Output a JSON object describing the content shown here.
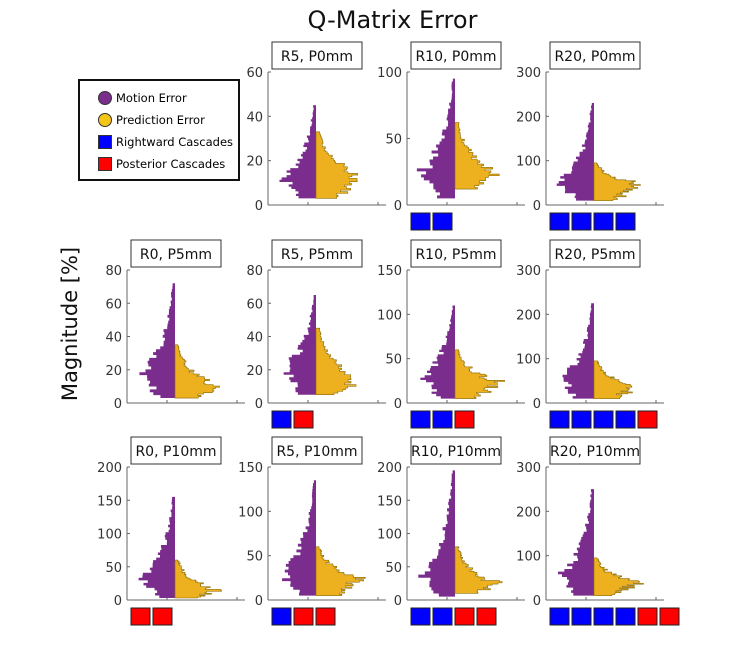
{
  "chart_data": {
    "type": "histogram-violin",
    "title": "Q-Matrix Error",
    "ylabel": "Magnitude [%]",
    "legend": {
      "position": "top-left",
      "entries": [
        {
          "label": "Motion Error",
          "color": "#7b2d8e",
          "shape": "circle"
        },
        {
          "label": "Prediction Error",
          "color": "#edb120",
          "shape": "circle"
        },
        {
          "label": "Rightward Cascades",
          "color": "#0000ff",
          "shape": "square"
        },
        {
          "label": "Posterior Cascades",
          "color": "#ff0000",
          "shape": "square"
        }
      ]
    },
    "panels": [
      {
        "title": "R5, P0mm",
        "row": 0,
        "col": 1,
        "ylim": [
          0,
          60
        ],
        "yticks": [
          "0",
          "20",
          "40",
          "60"
        ],
        "motion": {
          "min": 3,
          "max": 45,
          "peak": 12
        },
        "prediction": {
          "min": 3,
          "max": 33,
          "peak": 14
        },
        "cascades": []
      },
      {
        "title": "R10, P0mm",
        "row": 0,
        "col": 2,
        "ylim": [
          0,
          100
        ],
        "yticks": [
          "0",
          "50",
          "100"
        ],
        "motion": {
          "min": 5,
          "max": 95,
          "peak": 25
        },
        "prediction": {
          "min": 12,
          "max": 62,
          "peak": 25
        },
        "cascades": [
          "R",
          "R"
        ]
      },
      {
        "title": "R20, P0mm",
        "row": 0,
        "col": 3,
        "ylim": [
          0,
          300
        ],
        "yticks": [
          "0",
          "100",
          "200",
          "300"
        ],
        "motion": {
          "min": 10,
          "max": 230,
          "peak": 50
        },
        "prediction": {
          "min": 10,
          "max": 95,
          "peak": 50
        },
        "cascades": [
          "R",
          "R",
          "R",
          "R"
        ]
      },
      {
        "title": "R0, P5mm",
        "row": 1,
        "col": 0,
        "ylim": [
          0,
          80
        ],
        "yticks": [
          "0",
          "20",
          "40",
          "60",
          "80"
        ],
        "motion": {
          "min": 3,
          "max": 72,
          "peak": 17
        },
        "prediction": {
          "min": 3,
          "max": 35,
          "peak": 10
        },
        "cascades": []
      },
      {
        "title": "R5, P5mm",
        "row": 1,
        "col": 1,
        "ylim": [
          0,
          80
        ],
        "yticks": [
          "0",
          "20",
          "40",
          "60",
          "80"
        ],
        "motion": {
          "min": 5,
          "max": 65,
          "peak": 20
        },
        "prediction": {
          "min": 5,
          "max": 45,
          "peak": 15
        },
        "cascades": [
          "R",
          "P"
        ]
      },
      {
        "title": "R10, P5mm",
        "row": 1,
        "col": 2,
        "ylim": [
          0,
          150
        ],
        "yticks": [
          "0",
          "50",
          "100",
          "150"
        ],
        "motion": {
          "min": 5,
          "max": 110,
          "peak": 30
        },
        "prediction": {
          "min": 5,
          "max": 60,
          "peak": 25
        },
        "cascades": [
          "R",
          "R",
          "P"
        ]
      },
      {
        "title": "R20, P5mm",
        "row": 1,
        "col": 3,
        "ylim": [
          0,
          300
        ],
        "yticks": [
          "0",
          "100",
          "200",
          "300"
        ],
        "motion": {
          "min": 10,
          "max": 225,
          "peak": 50
        },
        "prediction": {
          "min": 10,
          "max": 95,
          "peak": 40
        },
        "cascades": [
          "R",
          "R",
          "R",
          "R",
          "P"
        ]
      },
      {
        "title": "R0, P10mm",
        "row": 2,
        "col": 0,
        "ylim": [
          0,
          200
        ],
        "yticks": [
          "0",
          "50",
          "100",
          "150",
          "200"
        ],
        "motion": {
          "min": 3,
          "max": 155,
          "peak": 30
        },
        "prediction": {
          "min": 3,
          "max": 60,
          "peak": 15
        },
        "cascades": [
          "P",
          "P"
        ]
      },
      {
        "title": "R5, P10mm",
        "row": 2,
        "col": 1,
        "ylim": [
          0,
          150
        ],
        "yticks": [
          "0",
          "50",
          "100",
          "150"
        ],
        "motion": {
          "min": 5,
          "max": 135,
          "peak": 30
        },
        "prediction": {
          "min": 5,
          "max": 60,
          "peak": 25
        },
        "cascades": [
          "R",
          "P",
          "P"
        ]
      },
      {
        "title": "R10, P10mm",
        "row": 2,
        "col": 2,
        "ylim": [
          0,
          200
        ],
        "yticks": [
          "0",
          "50",
          "100",
          "150",
          "200"
        ],
        "motion": {
          "min": 5,
          "max": 195,
          "peak": 35
        },
        "prediction": {
          "min": 10,
          "max": 80,
          "peak": 25
        },
        "cascades": [
          "R",
          "R",
          "P",
          "P"
        ]
      },
      {
        "title": "R20, P10mm",
        "row": 2,
        "col": 3,
        "ylim": [
          0,
          300
        ],
        "yticks": [
          "0",
          "100",
          "200",
          "300"
        ],
        "motion": {
          "min": 10,
          "max": 250,
          "peak": 55
        },
        "prediction": {
          "min": 10,
          "max": 95,
          "peak": 40
        },
        "cascades": [
          "R",
          "R",
          "R",
          "R",
          "P",
          "P"
        ]
      }
    ]
  }
}
